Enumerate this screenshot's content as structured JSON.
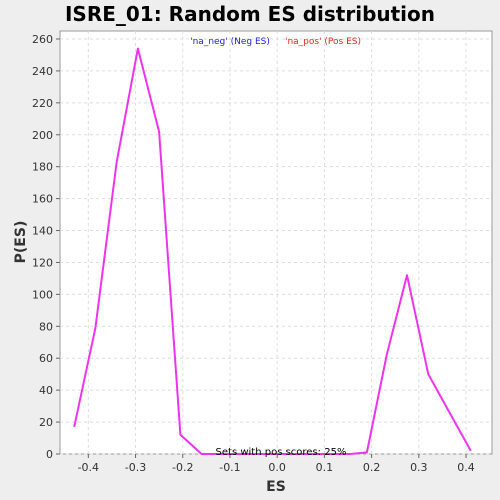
{
  "chart_data": {
    "type": "line",
    "title": "ISRE_01: Random ES distribution",
    "xlabel": "ES",
    "ylabel": "P(ES)",
    "xlim": [
      -0.46,
      0.455
    ],
    "ylim": [
      0,
      265
    ],
    "x_ticks": [
      -0.4,
      -0.3,
      -0.2,
      -0.1,
      0.0,
      0.1,
      0.2,
      0.3,
      0.4
    ],
    "x_tick_labels": [
      "-0.4",
      "-0.3",
      "-0.2",
      "-0.1",
      "0.0",
      "0.1",
      "0.2",
      "0.3",
      "0.4"
    ],
    "y_ticks": [
      0,
      20,
      40,
      60,
      80,
      100,
      120,
      140,
      160,
      180,
      200,
      220,
      240,
      260
    ],
    "y_tick_labels": [
      "0",
      "20",
      "40",
      "60",
      "80",
      "100",
      "120",
      "140",
      "160",
      "180",
      "200",
      "220",
      "240",
      "260"
    ],
    "grid": true,
    "legend": [
      {
        "label": "'na_neg' (Neg ES)",
        "color": "#2222dd"
      },
      {
        "label": "'na_pos' (Pos ES)",
        "color": "#ee2222"
      }
    ],
    "legend_placement": "top-center",
    "annotation": "Sets with pos scores: 25%",
    "series": [
      {
        "color": "#ee33ee",
        "x": [
          -0.43,
          -0.385,
          -0.34,
          -0.295,
          -0.25,
          -0.205,
          -0.16,
          -0.115,
          -0.07,
          -0.025,
          0.02,
          0.065,
          0.11,
          0.155,
          0.19,
          0.232,
          0.275,
          0.32,
          0.365,
          0.41
        ],
        "y": [
          17,
          79,
          183,
          254,
          202,
          12,
          0,
          0,
          0,
          0,
          0,
          0,
          0,
          0,
          1,
          62,
          112,
          50,
          26,
          2
        ]
      }
    ]
  }
}
